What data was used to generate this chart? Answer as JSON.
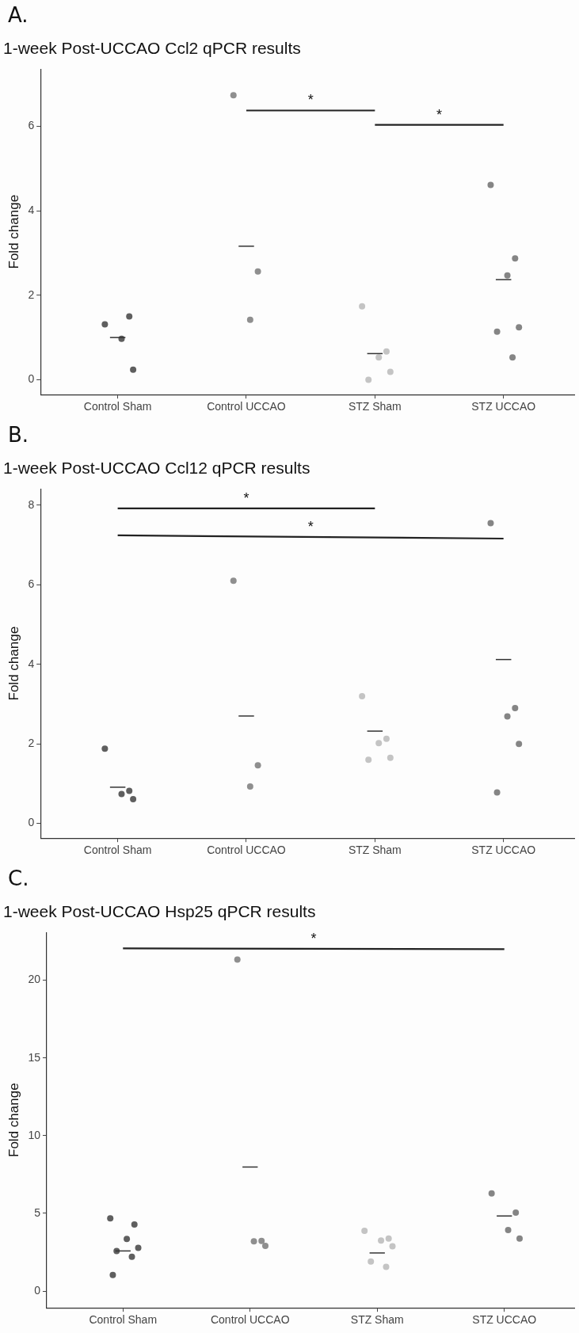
{
  "chart_data": [
    {
      "type": "scatter",
      "title": "1-week Post-UCCAO Ccl2 qPCR results",
      "ylabel": "Fold change",
      "categories": [
        "Control Sham",
        "Control UCCAO",
        "STZ Sham",
        "STZ UCCAO"
      ],
      "ylim": [
        -0.35,
        7.35
      ],
      "yticks": [
        0,
        2,
        4,
        6
      ],
      "grid": false,
      "legend": false,
      "annotations": [
        "A.",
        "*",
        "*"
      ],
      "series": [
        {
          "marker": "circle",
          "x": [
            "Control Sham",
            "Control Sham",
            "Control Sham",
            "Control Sham",
            "Control UCCAO",
            "Control UCCAO",
            "Control UCCAO",
            "STZ Sham",
            "STZ Sham",
            "STZ Sham",
            "STZ Sham",
            "STZ Sham",
            "STZ UCCAO",
            "STZ UCCAO",
            "STZ UCCAO",
            "STZ UCCAO",
            "STZ UCCAO",
            "STZ UCCAO"
          ],
          "values": [
            1.31,
            1.5,
            0.97,
            0.24,
            6.73,
            2.56,
            1.42,
            1.74,
            0.67,
            0.53,
            0.19,
            0,
            4.61,
            2.87,
            2.47,
            1.24,
            1.14,
            0.53
          ],
          "colors": [
            "#5f5f5f",
            "#5f5f5f",
            "#5f5f5f",
            "#5f5f5f",
            "#8f8f8f",
            "#8f8f8f",
            "#8f8f8f",
            "#c4c4c4",
            "#c4c4c4",
            "#c4c4c4",
            "#c4c4c4",
            "#c4c4c4",
            "#858585",
            "#858585",
            "#858585",
            "#858585",
            "#858585",
            "#858585"
          ]
        },
        {
          "type": "box",
          "color": "#333333",
          "boxes": [
            {
              "low": 1.0,
              "q1": 1.0,
              "median": 1.0,
              "q3": 1.0,
              "high": 1.0
            },
            {
              "low": 3.16,
              "q1": 3.16,
              "median": 3.16,
              "q3": 3.16,
              "high": 3.16
            },
            {
              "low": 0.62,
              "q1": 0.62,
              "median": 0.62,
              "q3": 0.62,
              "high": 0.62
            },
            {
              "low": 2.37,
              "q1": 2.37,
              "median": 2.37,
              "q3": 2.37,
              "high": 2.37
            }
          ]
        },
        {
          "type": "line",
          "marker": "none",
          "color": "#222222",
          "x": [
            "Control UCCAO",
            "STZ Sham"
          ],
          "values": [
            6.37,
            6.37
          ]
        },
        {
          "type": "line",
          "marker": "none",
          "color": "#222222",
          "x": [
            "STZ Sham",
            "STZ UCCAO"
          ],
          "values": [
            6.03,
            6.03
          ]
        }
      ]
    },
    {
      "type": "scatter",
      "title": "1-week Post-UCCAO Ccl12 qPCR results",
      "ylabel": "Fold change",
      "categories": [
        "Control Sham",
        "Control UCCAO",
        "STZ Sham",
        "STZ UCCAO"
      ],
      "ylim": [
        -0.37,
        8.41
      ],
      "yticks": [
        0,
        2,
        4,
        6,
        8
      ],
      "grid": false,
      "legend": false,
      "annotations": [
        "B.",
        "*",
        "*"
      ],
      "series": [
        {
          "marker": "circle",
          "x": [
            "Control Sham",
            "Control Sham",
            "Control Sham",
            "Control Sham",
            "Control UCCAO",
            "Control UCCAO",
            "Control UCCAO",
            "STZ Sham",
            "STZ Sham",
            "STZ Sham",
            "STZ Sham",
            "STZ Sham",
            "STZ UCCAO",
            "STZ UCCAO",
            "STZ UCCAO",
            "STZ UCCAO",
            "STZ UCCAO"
          ],
          "values": [
            1.88,
            0.82,
            0.74,
            0.61,
            6.1,
            1.46,
            0.93,
            3.2,
            2.13,
            2.02,
            1.65,
            1.6,
            7.55,
            2.9,
            2.69,
            2.0,
            0.78
          ],
          "colors": [
            "#5f5f5f",
            "#5f5f5f",
            "#5f5f5f",
            "#5f5f5f",
            "#8f8f8f",
            "#8f8f8f",
            "#8f8f8f",
            "#c4c4c4",
            "#c4c4c4",
            "#c4c4c4",
            "#c4c4c4",
            "#c4c4c4",
            "#858585",
            "#858585",
            "#858585",
            "#858585",
            "#858585"
          ]
        },
        {
          "type": "box",
          "color": "#333333",
          "boxes": [
            {
              "low": 0.91,
              "q1": 0.91,
              "median": 0.91,
              "q3": 0.91,
              "high": 0.91
            },
            {
              "low": 2.7,
              "q1": 2.7,
              "median": 2.7,
              "q3": 2.7,
              "high": 2.7
            },
            {
              "low": 2.32,
              "q1": 2.32,
              "median": 2.32,
              "q3": 2.32,
              "high": 2.32
            },
            {
              "low": 4.12,
              "q1": 4.12,
              "median": 4.12,
              "q3": 4.12,
              "high": 4.12
            }
          ]
        },
        {
          "type": "line",
          "marker": "none",
          "color": "#222222",
          "x": [
            "Control Sham",
            "STZ Sham"
          ],
          "values": [
            7.92,
            7.92
          ]
        },
        {
          "type": "line",
          "marker": "none",
          "color": "#222222",
          "x": [
            "Control Sham",
            "STZ UCCAO"
          ],
          "values": [
            7.24,
            7.16
          ]
        }
      ]
    },
    {
      "type": "scatter",
      "title": "1-week Post-UCCAO Hsp25 qPCR results",
      "ylabel": "Fold change",
      "categories": [
        "Control Sham",
        "Control UCCAO",
        "STZ Sham",
        "STZ UCCAO"
      ],
      "ylim": [
        -1.08,
        23.08
      ],
      "yticks": [
        0,
        5,
        10,
        15,
        20
      ],
      "grid": false,
      "legend": false,
      "annotations": [
        "C.",
        "*"
      ],
      "series": [
        {
          "marker": "circle",
          "x": [
            "Control Sham",
            "Control Sham",
            "Control Sham",
            "Control Sham",
            "Control Sham",
            "Control Sham",
            "Control Sham",
            "Control UCCAO",
            "Control UCCAO",
            "Control UCCAO",
            "Control UCCAO",
            "STZ Sham",
            "STZ Sham",
            "STZ Sham",
            "STZ Sham",
            "STZ Sham",
            "STZ Sham",
            "STZ UCCAO",
            "STZ UCCAO",
            "STZ UCCAO",
            "STZ UCCAO"
          ],
          "values": [
            4.68,
            4.28,
            3.35,
            2.78,
            2.58,
            2.2,
            1.03,
            21.33,
            3.23,
            3.2,
            2.9,
            3.88,
            3.38,
            3.25,
            2.88,
            1.9,
            1.55,
            6.28,
            5.05,
            3.93,
            3.38
          ],
          "colors": [
            "#5f5f5f",
            "#5f5f5f",
            "#5f5f5f",
            "#5f5f5f",
            "#5f5f5f",
            "#5f5f5f",
            "#5f5f5f",
            "#8f8f8f",
            "#8f8f8f",
            "#8f8f8f",
            "#8f8f8f",
            "#c4c4c4",
            "#c4c4c4",
            "#c4c4c4",
            "#c4c4c4",
            "#c4c4c4",
            "#c4c4c4",
            "#858585",
            "#858585",
            "#858585",
            "#858585"
          ]
        },
        {
          "type": "box",
          "color": "#333333",
          "boxes": [
            {
              "low": 2.58,
              "q1": 2.58,
              "median": 2.58,
              "q3": 2.58,
              "high": 2.58
            },
            {
              "low": 7.98,
              "q1": 7.98,
              "median": 7.98,
              "q3": 7.98,
              "high": 7.98
            },
            {
              "low": 2.45,
              "q1": 2.45,
              "median": 2.45,
              "q3": 2.45,
              "high": 2.45
            },
            {
              "low": 4.83,
              "q1": 4.83,
              "median": 4.83,
              "q3": 4.83,
              "high": 4.83
            }
          ]
        },
        {
          "type": "line",
          "marker": "none",
          "color": "#222222",
          "x": [
            "Control Sham",
            "STZ UCCAO"
          ],
          "values": [
            22.05,
            22.0
          ]
        }
      ]
    }
  ]
}
